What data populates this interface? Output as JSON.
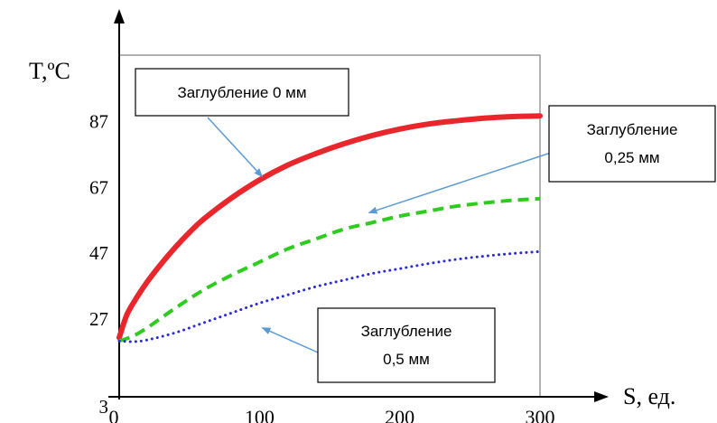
{
  "colors": {
    "axis": "#000000",
    "frame": "#7f7f7f",
    "callout_border": "#000000",
    "arrow": "#5b9bd5"
  },
  "chart_data": {
    "type": "line",
    "xlabel": "S, ед.",
    "ylabel": "T,ºC",
    "xlim": [
      0,
      300
    ],
    "ylim": [
      3,
      107
    ],
    "x_ticks": [
      0,
      100,
      200,
      300
    ],
    "x_tick_labels": [
      "0",
      "100",
      "200",
      "300"
    ],
    "y_ticks": [
      3,
      27,
      47,
      67,
      87
    ],
    "y_tick_labels": [
      "3",
      "27",
      "47",
      "67",
      "87"
    ],
    "grid": false,
    "series": [
      {
        "name": "Заглубление 0 мм",
        "color": "#e8262b",
        "style": "solid",
        "x": [
          0,
          5,
          10,
          20,
          30,
          40,
          50,
          60,
          80,
          100,
          120,
          140,
          160,
          180,
          200,
          220,
          240,
          260,
          280,
          300
        ],
        "y": [
          21,
          27.5,
          31.5,
          38,
          43.5,
          48.5,
          53,
          57,
          63.5,
          69,
          73.5,
          77,
          80,
          82.5,
          84.5,
          86,
          87,
          87.8,
          88.3,
          88.5
        ]
      },
      {
        "name": "Заглубление 0,25 мм",
        "color": "#2ecc1f",
        "style": "dashed",
        "x": [
          0,
          10,
          20,
          30,
          40,
          60,
          80,
          100,
          120,
          140,
          160,
          180,
          200,
          220,
          240,
          260,
          280,
          300
        ],
        "y": [
          20,
          21.5,
          24,
          27,
          30,
          35.5,
          40,
          44,
          48,
          51,
          54,
          56,
          58,
          59.5,
          61,
          62,
          62.8,
          63.3
        ]
      },
      {
        "name": "Заглубление 0,5 мм",
        "color": "#2b2bd9",
        "style": "dotted",
        "x": [
          0,
          10,
          20,
          40,
          60,
          80,
          100,
          120,
          140,
          160,
          180,
          200,
          220,
          240,
          260,
          280,
          300
        ],
        "y": [
          20,
          19.8,
          20.3,
          22.5,
          25.5,
          28.5,
          31.5,
          34,
          36.5,
          38.5,
          40.5,
          42,
          43.5,
          44.8,
          45.8,
          46.6,
          47.2
        ]
      }
    ],
    "annotations": [
      {
        "line1": "Заглубление 0 мм",
        "line2": "",
        "target_x": 102,
        "target_y": 70
      },
      {
        "line1": "Заглубление",
        "line2": "0,25 мм",
        "target_x": 178,
        "target_y": 59
      },
      {
        "line1": "Заглубление",
        "line2": "0,5 мм",
        "target_x": 102,
        "target_y": 24
      }
    ]
  }
}
